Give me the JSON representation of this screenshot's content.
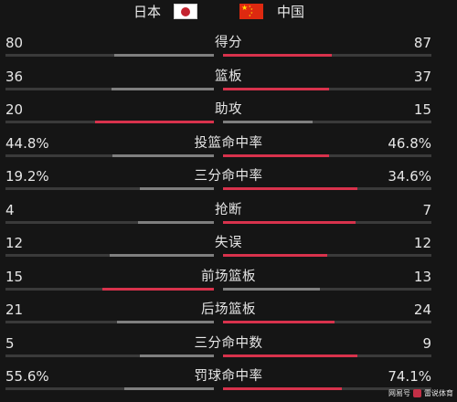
{
  "header": {
    "home_team": "日本",
    "away_team": "中国"
  },
  "colors": {
    "leader_bar": "#d8324c",
    "trailer_bar": "#7f7f7f",
    "track": "#3a3a3a",
    "background": "#151515"
  },
  "stats": [
    {
      "label": "得分",
      "home": "80",
      "away": "87",
      "home_value": 80,
      "away_value": 87
    },
    {
      "label": "篮板",
      "home": "36",
      "away": "37",
      "home_value": 36,
      "away_value": 37
    },
    {
      "label": "助攻",
      "home": "20",
      "away": "15",
      "home_value": 20,
      "away_value": 15
    },
    {
      "label": "投篮命中率",
      "home": "44.8%",
      "away": "46.8%",
      "home_value": 44.8,
      "away_value": 46.8
    },
    {
      "label": "三分命中率",
      "home": "19.2%",
      "away": "34.6%",
      "home_value": 19.2,
      "away_value": 34.6
    },
    {
      "label": "抢断",
      "home": "4",
      "away": "7",
      "home_value": 4,
      "away_value": 7
    },
    {
      "label": "失误",
      "home": "12",
      "away": "12",
      "home_value": 12,
      "away_value": 12
    },
    {
      "label": "前场篮板",
      "home": "15",
      "away": "13",
      "home_value": 15,
      "away_value": 13
    },
    {
      "label": "后场篮板",
      "home": "21",
      "away": "24",
      "home_value": 21,
      "away_value": 24
    },
    {
      "label": "三分命中数",
      "home": "5",
      "away": "9",
      "home_value": 5,
      "away_value": 9
    },
    {
      "label": "罚球命中率",
      "home": "55.6%",
      "away": "74.1%",
      "home_value": 55.6,
      "away_value": 74.1
    }
  ],
  "watermark": {
    "text_left": "网易号",
    "text_right": "雷说体育"
  }
}
